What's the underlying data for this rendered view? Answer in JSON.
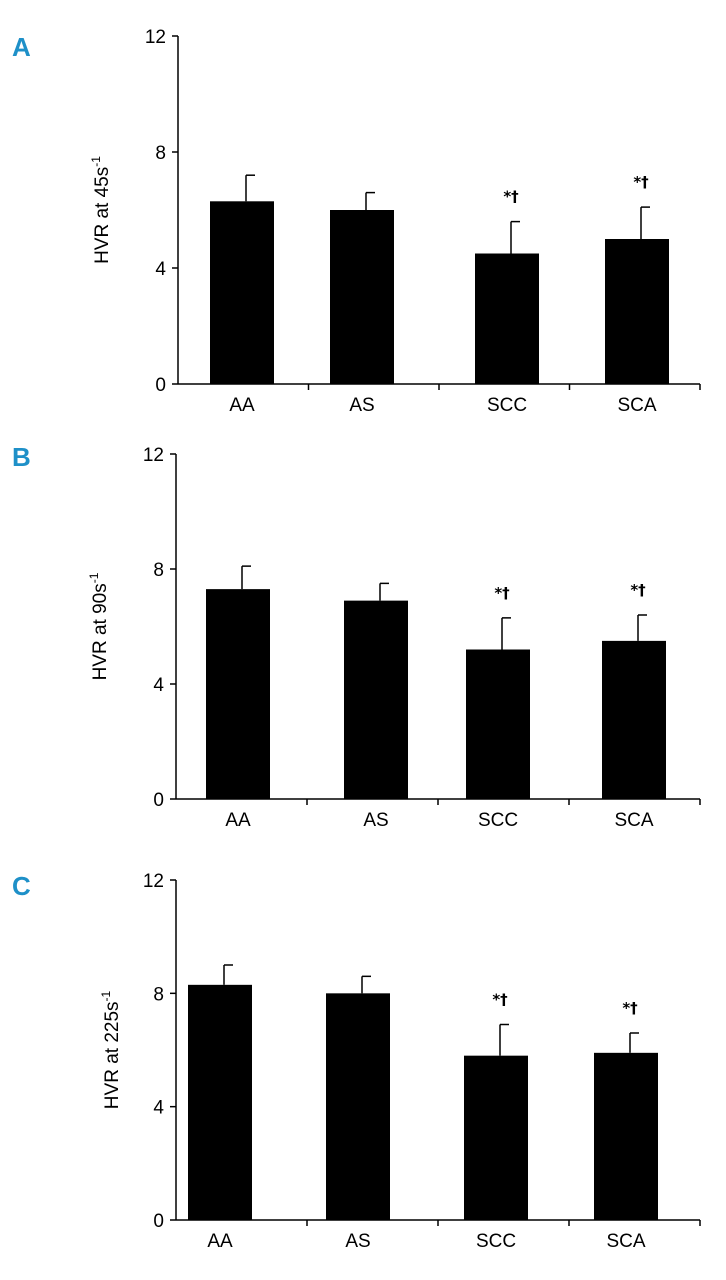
{
  "figure": {
    "accent_color": "#1e90c8",
    "bar_color": "#000000"
  },
  "chart_data": [
    {
      "panel": "A",
      "type": "bar",
      "ylabel_main": "HVR at 45s",
      "ylabel_sup": "-1",
      "categories": [
        "AA",
        "AS",
        "SCC",
        "SCA"
      ],
      "values": [
        6.3,
        6.0,
        4.5,
        5.0
      ],
      "errors": [
        0.9,
        0.6,
        1.1,
        1.1
      ],
      "annotations": [
        "",
        "",
        "*†",
        "*†"
      ],
      "ylim": [
        0,
        12
      ],
      "yticks": [
        "0",
        "4",
        "8",
        "12"
      ]
    },
    {
      "panel": "B",
      "type": "bar",
      "ylabel_main": "HVR at 90s",
      "ylabel_sup": "-1",
      "categories": [
        "AA",
        "AS",
        "SCC",
        "SCA"
      ],
      "values": [
        7.3,
        6.9,
        5.2,
        5.5
      ],
      "errors": [
        0.8,
        0.6,
        1.1,
        0.9
      ],
      "annotations": [
        "",
        "",
        "*†",
        "*†"
      ],
      "ylim": [
        0,
        12
      ],
      "yticks": [
        "0",
        "4",
        "8",
        "12"
      ]
    },
    {
      "panel": "C",
      "type": "bar",
      "ylabel_main": "HVR at 225s",
      "ylabel_sup": "-1",
      "categories": [
        "AA",
        "AS",
        "SCC",
        "SCA"
      ],
      "values": [
        8.3,
        8.0,
        5.8,
        5.9
      ],
      "errors": [
        0.7,
        0.6,
        1.1,
        0.7
      ],
      "annotations": [
        "",
        "",
        "*†",
        "*†"
      ],
      "ylim": [
        0,
        12
      ],
      "yticks": [
        "0",
        "4",
        "8",
        "12"
      ]
    }
  ]
}
